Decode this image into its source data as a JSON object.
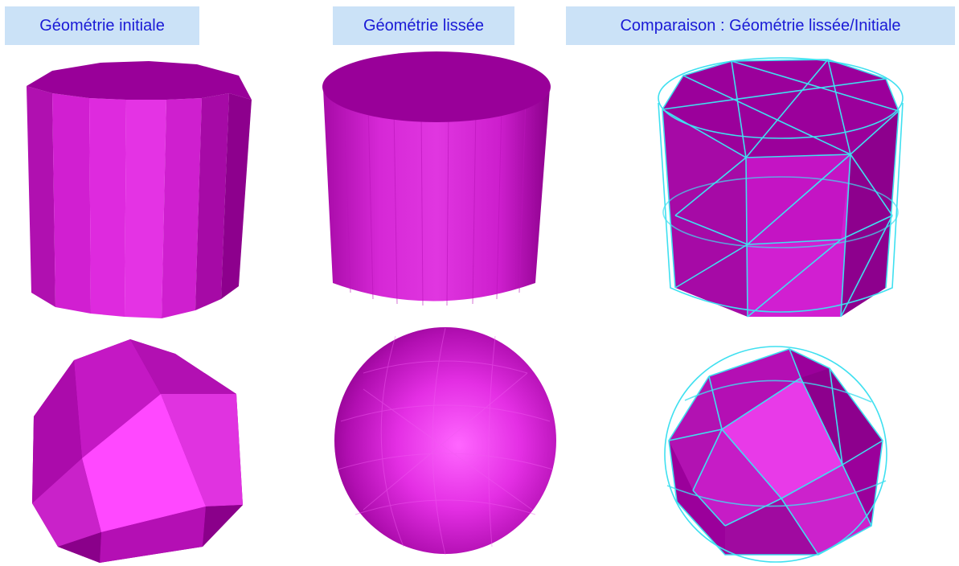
{
  "labels": {
    "initial": "Géométrie initiale",
    "smoothed": "Géométrie lissée",
    "comparison": "Comparaison : Géométrie lissée/Initiale"
  },
  "colors": {
    "label_background": "#cbe2f7",
    "label_text": "#1a1ad6",
    "mesh_face_light": "#ff3dff",
    "mesh_face_mid": "#cc1acc",
    "mesh_face_dark": "#8a008a",
    "wireframe_overlay": "#3fe0f0"
  }
}
